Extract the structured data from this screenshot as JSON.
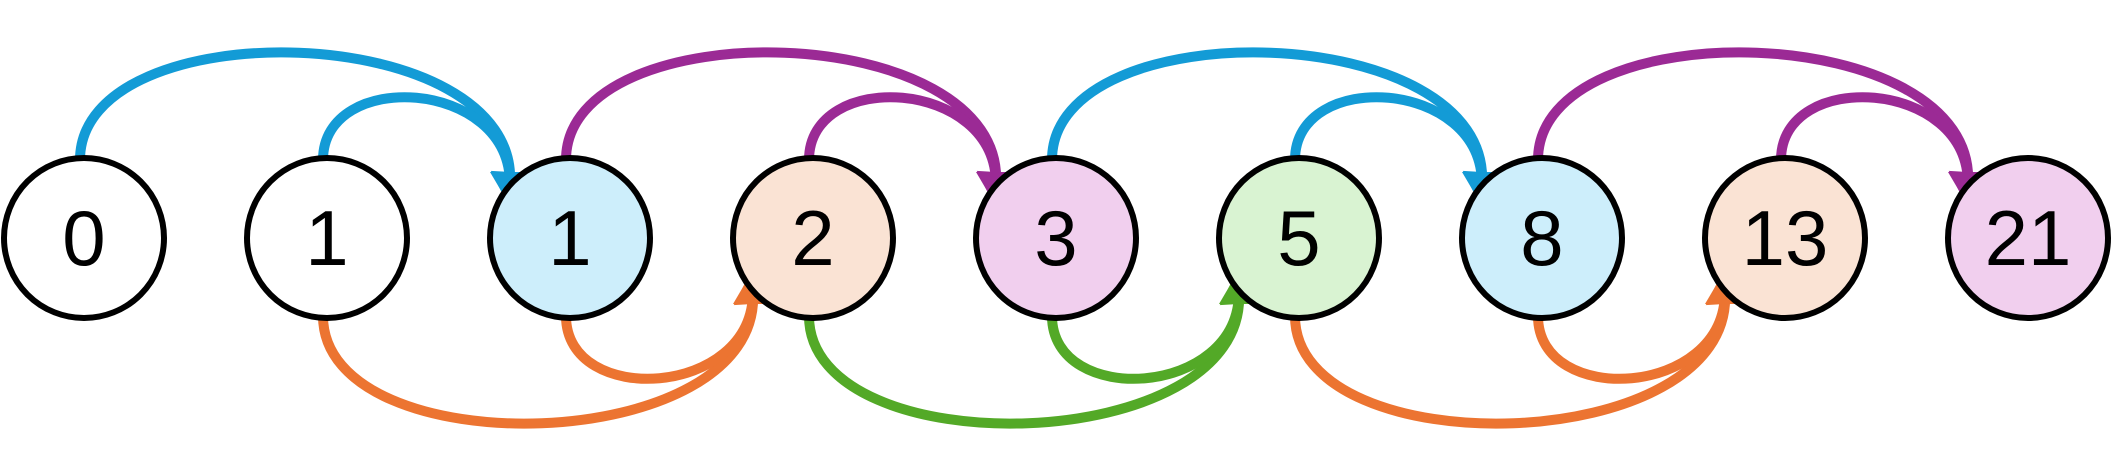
{
  "colors": {
    "blue": "#139bd6",
    "purple": "#9b2a95",
    "orange": "#ec7431",
    "green": "#53a927"
  },
  "nodes": [
    {
      "label": "0",
      "fill": "#ffffff"
    },
    {
      "label": "1",
      "fill": "#ffffff"
    },
    {
      "label": "1",
      "fill": "#cdeefb"
    },
    {
      "label": "2",
      "fill": "#fae3d4"
    },
    {
      "label": "3",
      "fill": "#f1cfee"
    },
    {
      "label": "5",
      "fill": "#d9f3d2"
    },
    {
      "label": "8",
      "fill": "#cdeefb"
    },
    {
      "label": "13",
      "fill": "#fae3d4"
    },
    {
      "label": "21",
      "fill": "#f1cfee"
    }
  ],
  "edges": [
    {
      "from": 0,
      "to": 2,
      "side": "top",
      "color": "blue"
    },
    {
      "from": 1,
      "to": 2,
      "side": "top",
      "color": "blue"
    },
    {
      "from": 2,
      "to": 4,
      "side": "top",
      "color": "purple"
    },
    {
      "from": 3,
      "to": 4,
      "side": "top",
      "color": "purple"
    },
    {
      "from": 4,
      "to": 6,
      "side": "top",
      "color": "blue"
    },
    {
      "from": 5,
      "to": 6,
      "side": "top",
      "color": "blue"
    },
    {
      "from": 6,
      "to": 8,
      "side": "top",
      "color": "purple"
    },
    {
      "from": 7,
      "to": 8,
      "side": "top",
      "color": "purple"
    },
    {
      "from": 1,
      "to": 3,
      "side": "bottom",
      "color": "orange"
    },
    {
      "from": 2,
      "to": 3,
      "side": "bottom",
      "color": "orange"
    },
    {
      "from": 3,
      "to": 5,
      "side": "bottom",
      "color": "green"
    },
    {
      "from": 4,
      "to": 5,
      "side": "bottom",
      "color": "green"
    },
    {
      "from": 5,
      "to": 7,
      "side": "bottom",
      "color": "orange"
    },
    {
      "from": 6,
      "to": 7,
      "side": "bottom",
      "color": "orange"
    }
  ]
}
